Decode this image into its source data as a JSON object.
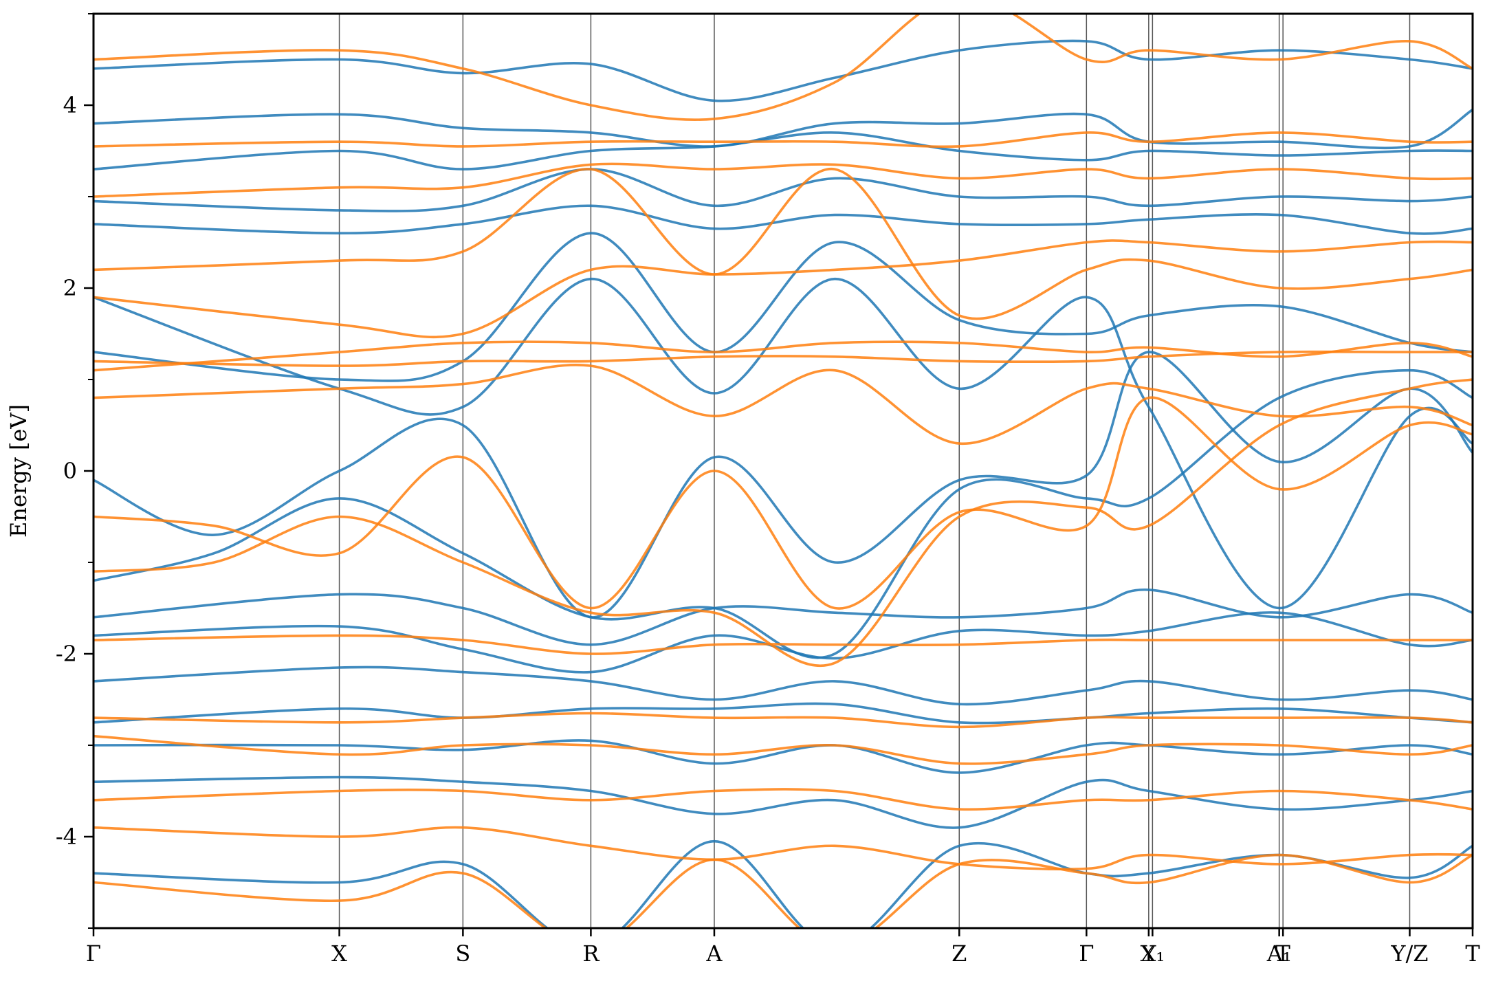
{
  "chart_data": {
    "type": "line",
    "title": "",
    "xlabel": "",
    "ylabel": "Energy [eV]",
    "ylim": [
      -5,
      5
    ],
    "yticks": [
      {
        "value": 4,
        "label": "4"
      },
      {
        "value": 2,
        "label": "2"
      },
      {
        "value": 0,
        "label": "0"
      },
      {
        "value": -2,
        "label": "-2"
      },
      {
        "value": -4,
        "label": "-4"
      }
    ],
    "xlim": [
      0,
      8.0
    ],
    "high_symmetry_points": [
      {
        "x": 0.0,
        "label": "Γ"
      },
      {
        "x": 1.426,
        "label": "X"
      },
      {
        "x": 2.143,
        "label": "S"
      },
      {
        "x": 2.885,
        "label": "R"
      },
      {
        "x": 3.601,
        "label": "A"
      },
      {
        "x": 5.022,
        "label": "Z"
      },
      {
        "x": 5.76,
        "label": "Γ"
      },
      {
        "x": 6.121,
        "label": "Y"
      },
      {
        "x": 6.143,
        "label": "X₁"
      },
      {
        "x": 6.878,
        "label": "A₁"
      },
      {
        "x": 6.9,
        "label": "T"
      },
      {
        "x": 7.635,
        "label": "Y/Z"
      },
      {
        "x": 8.0,
        "label": "T"
      }
    ],
    "grid": false,
    "legend": "none",
    "series": [
      {
        "color": "#1f77b4",
        "bands": [
          {
            "x": [
              0,
              0.7,
              1.426,
              2.143,
              2.885,
              3.601,
              4.3,
              5.022,
              5.76,
              6.121,
              6.878,
              7.635,
              8.0
            ],
            "y": [
              -0.1,
              -0.7,
              0.0,
              0.5,
              -1.6,
              0.15,
              -1.0,
              -0.1,
              -0.05,
              1.3,
              0.1,
              0.9,
              0.2
            ]
          },
          {
            "x": [
              0,
              0.7,
              1.426,
              2.143,
              2.885,
              3.601,
              4.3,
              5.022,
              5.76,
              6.121,
              6.878,
              7.635,
              8.0
            ],
            "y": [
              -1.2,
              -0.9,
              -0.3,
              -0.9,
              -1.6,
              -1.5,
              -2.0,
              -0.2,
              -0.3,
              -0.3,
              0.8,
              1.1,
              0.8
            ]
          },
          {
            "x": [
              0,
              1.426,
              2.143,
              2.885,
              3.601,
              4.3,
              5.022,
              5.76,
              6.121,
              6.878,
              7.635,
              8.0
            ],
            "y": [
              1.9,
              0.9,
              0.7,
              2.1,
              0.85,
              2.1,
              0.9,
              1.9,
              0.7,
              -1.5,
              0.6,
              0.3
            ]
          },
          {
            "x": [
              0,
              1.426,
              2.143,
              2.885,
              3.601,
              4.3,
              5.022,
              5.76,
              6.121,
              6.878,
              7.635,
              8.0
            ],
            "y": [
              -1.6,
              -1.35,
              -1.5,
              -1.9,
              -1.5,
              -1.55,
              -1.6,
              -1.5,
              -1.3,
              -1.6,
              -1.35,
              -1.55
            ]
          },
          {
            "x": [
              0,
              1.426,
              2.143,
              2.885,
              3.601,
              4.3,
              5.022,
              5.76,
              6.121,
              6.878,
              7.635,
              8.0
            ],
            "y": [
              -1.8,
              -1.7,
              -1.95,
              -2.2,
              -1.8,
              -2.05,
              -1.75,
              -1.8,
              -1.75,
              -1.55,
              -1.9,
              -1.85
            ]
          },
          {
            "x": [
              0,
              1.426,
              2.143,
              2.885,
              3.601,
              4.3,
              5.022,
              5.76,
              6.121,
              6.878,
              7.635,
              8.0
            ],
            "y": [
              -2.3,
              -2.15,
              -2.2,
              -2.3,
              -2.5,
              -2.3,
              -2.55,
              -2.4,
              -2.3,
              -2.5,
              -2.4,
              -2.5
            ]
          },
          {
            "x": [
              0,
              1.426,
              2.143,
              2.885,
              3.601,
              4.3,
              5.022,
              5.76,
              6.121,
              6.878,
              7.635,
              8.0
            ],
            "y": [
              -2.75,
              -2.6,
              -2.7,
              -2.6,
              -2.6,
              -2.55,
              -2.75,
              -2.7,
              -2.65,
              -2.6,
              -2.7,
              -2.75
            ]
          },
          {
            "x": [
              0,
              1.426,
              2.143,
              2.885,
              3.601,
              4.3,
              5.022,
              5.76,
              6.121,
              6.878,
              7.635,
              8.0
            ],
            "y": [
              -3.0,
              -3.0,
              -3.05,
              -2.95,
              -3.2,
              -3.0,
              -3.3,
              -3.0,
              -3.0,
              -3.1,
              -3.0,
              -3.1
            ]
          },
          {
            "x": [
              0,
              1.426,
              2.143,
              2.885,
              3.601,
              4.3,
              5.022,
              5.76,
              6.121,
              6.878,
              7.635,
              8.0
            ],
            "y": [
              -3.4,
              -3.35,
              -3.4,
              -3.5,
              -3.75,
              -3.6,
              -3.9,
              -3.4,
              -3.5,
              -3.7,
              -3.6,
              -3.5
            ]
          },
          {
            "x": [
              0,
              1.426,
              2.143,
              2.885,
              3.601,
              4.3,
              5.022,
              5.76,
              6.121,
              6.878,
              7.635,
              8.0
            ],
            "y": [
              -4.4,
              -4.5,
              -4.3,
              -5.2,
              -4.05,
              -5.2,
              -4.1,
              -4.4,
              -4.4,
              -4.2,
              -4.45,
              -4.1
            ]
          },
          {
            "x": [
              0,
              1.426,
              2.143,
              2.885,
              3.601,
              4.3,
              5.022,
              5.76,
              6.121,
              6.878,
              7.635,
              8.0
            ],
            "y": [
              2.7,
              2.6,
              2.7,
              2.9,
              2.65,
              2.8,
              2.7,
              2.7,
              2.75,
              2.8,
              2.6,
              2.65
            ]
          },
          {
            "x": [
              0,
              1.426,
              2.143,
              2.885,
              3.601,
              4.3,
              5.022,
              5.76,
              6.121,
              6.878,
              7.635,
              8.0
            ],
            "y": [
              2.95,
              2.85,
              2.9,
              3.3,
              2.9,
              3.2,
              3.0,
              3.0,
              2.9,
              3.0,
              2.95,
              3.0
            ]
          },
          {
            "x": [
              0,
              1.426,
              2.143,
              2.885,
              3.601,
              4.3,
              5.022,
              5.76,
              6.121,
              6.878,
              7.635,
              8.0
            ],
            "y": [
              3.3,
              3.5,
              3.3,
              3.5,
              3.55,
              3.7,
              3.5,
              3.4,
              3.5,
              3.45,
              3.5,
              3.5
            ]
          },
          {
            "x": [
              0,
              1.426,
              2.143,
              2.885,
              3.601,
              4.3,
              5.022,
              5.76,
              6.121,
              6.878,
              7.635,
              8.0
            ],
            "y": [
              3.8,
              3.9,
              3.75,
              3.7,
              3.55,
              3.8,
              3.8,
              3.9,
              3.6,
              3.6,
              3.55,
              3.95
            ]
          },
          {
            "x": [
              0,
              1.426,
              2.143,
              2.885,
              3.601,
              4.3,
              5.022,
              5.76,
              6.121,
              6.878,
              7.635,
              8.0
            ],
            "y": [
              4.4,
              4.5,
              4.35,
              4.45,
              4.05,
              4.3,
              4.6,
              4.7,
              4.5,
              4.6,
              4.5,
              4.4
            ]
          },
          {
            "x": [
              0,
              1.426,
              2.143,
              2.885,
              3.601,
              4.3,
              5.022,
              5.76,
              6.121,
              6.878,
              7.635,
              8.0
            ],
            "y": [
              1.3,
              1.0,
              1.2,
              2.6,
              1.3,
              2.5,
              1.65,
              1.5,
              1.7,
              1.8,
              1.4,
              1.3
            ]
          }
        ]
      },
      {
        "color": "#ff7f0e",
        "bands": [
          {
            "x": [
              0,
              0.7,
              1.426,
              2.143,
              2.885,
              3.601,
              4.3,
              5.022,
              5.76,
              6.121,
              6.878,
              7.635,
              8.0
            ],
            "y": [
              -0.5,
              -0.6,
              -0.9,
              0.15,
              -1.5,
              0.0,
              -1.5,
              -0.45,
              -0.6,
              0.8,
              -0.2,
              0.5,
              0.4
            ]
          },
          {
            "x": [
              0,
              0.7,
              1.426,
              2.143,
              2.885,
              3.601,
              4.3,
              5.022,
              5.76,
              6.121,
              6.878,
              7.635,
              8.0
            ],
            "y": [
              -1.1,
              -1.0,
              -0.5,
              -1.0,
              -1.55,
              -1.55,
              -2.1,
              -0.5,
              -0.4,
              -0.6,
              0.5,
              0.9,
              1.0
            ]
          },
          {
            "x": [
              0,
              1.426,
              2.143,
              2.885,
              3.601,
              4.3,
              5.022,
              5.76,
              6.121,
              6.878,
              7.635,
              8.0
            ],
            "y": [
              1.2,
              1.15,
              1.2,
              1.2,
              1.25,
              1.25,
              1.2,
              1.2,
              1.25,
              1.3,
              1.3,
              1.3
            ]
          },
          {
            "x": [
              0,
              1.426,
              2.143,
              2.885,
              3.601,
              4.3,
              5.022,
              5.76,
              6.121,
              6.878,
              7.635,
              8.0
            ],
            "y": [
              1.1,
              1.3,
              1.4,
              1.4,
              1.3,
              1.4,
              1.4,
              1.3,
              1.35,
              1.25,
              1.4,
              1.25
            ]
          },
          {
            "x": [
              0,
              1.426,
              2.143,
              2.885,
              3.601,
              4.3,
              5.022,
              5.76,
              6.121,
              6.878,
              7.635,
              8.0
            ],
            "y": [
              0.8,
              0.9,
              0.95,
              1.15,
              0.6,
              1.1,
              0.3,
              0.9,
              0.9,
              0.6,
              0.7,
              0.5
            ]
          },
          {
            "x": [
              0,
              1.426,
              2.143,
              2.885,
              3.601,
              4.3,
              5.022,
              5.76,
              6.121,
              6.878,
              7.635,
              8.0
            ],
            "y": [
              -1.85,
              -1.8,
              -1.85,
              -2.0,
              -1.9,
              -1.9,
              -1.9,
              -1.85,
              -1.85,
              -1.85,
              -1.85,
              -1.85
            ]
          },
          {
            "x": [
              0,
              1.426,
              2.143,
              2.885,
              3.601,
              4.3,
              5.022,
              5.76,
              6.121,
              6.878,
              7.635,
              8.0
            ],
            "y": [
              -2.7,
              -2.75,
              -2.7,
              -2.65,
              -2.7,
              -2.7,
              -2.8,
              -2.7,
              -2.7,
              -2.7,
              -2.7,
              -2.75
            ]
          },
          {
            "x": [
              0,
              1.426,
              2.143,
              2.885,
              3.601,
              4.3,
              5.022,
              5.76,
              6.121,
              6.878,
              7.635,
              8.0
            ],
            "y": [
              -2.9,
              -3.1,
              -3.0,
              -3.0,
              -3.1,
              -3.0,
              -3.2,
              -3.1,
              -3.0,
              -3.0,
              -3.1,
              -3.0
            ]
          },
          {
            "x": [
              0,
              1.426,
              2.143,
              2.885,
              3.601,
              4.3,
              5.022,
              5.76,
              6.121,
              6.878,
              7.635,
              8.0
            ],
            "y": [
              -3.6,
              -3.5,
              -3.5,
              -3.6,
              -3.5,
              -3.5,
              -3.7,
              -3.6,
              -3.6,
              -3.5,
              -3.6,
              -3.7
            ]
          },
          {
            "x": [
              0,
              1.426,
              2.143,
              2.885,
              3.601,
              4.3,
              5.022,
              5.76,
              6.121,
              6.878,
              7.635,
              8.0
            ],
            "y": [
              -4.5,
              -4.7,
              -4.4,
              -5.2,
              -4.25,
              -5.2,
              -4.3,
              -4.4,
              -4.5,
              -4.2,
              -4.5,
              -4.2
            ]
          },
          {
            "x": [
              0,
              1.426,
              2.143,
              2.885,
              3.601,
              4.3,
              5.022,
              5.76,
              6.121,
              6.878,
              7.635,
              8.0
            ],
            "y": [
              2.2,
              2.3,
              2.4,
              3.3,
              2.15,
              3.3,
              1.7,
              2.2,
              2.3,
              2.0,
              2.1,
              2.2
            ]
          },
          {
            "x": [
              0,
              1.426,
              2.143,
              2.885,
              3.601,
              4.3,
              5.022,
              5.76,
              6.121,
              6.878,
              7.635,
              8.0
            ],
            "y": [
              3.0,
              3.1,
              3.1,
              3.35,
              3.3,
              3.35,
              3.2,
              3.3,
              3.2,
              3.3,
              3.2,
              3.2
            ]
          },
          {
            "x": [
              0,
              1.426,
              2.143,
              2.885,
              3.601,
              4.3,
              5.022,
              5.76,
              6.121,
              6.878,
              7.635,
              8.0
            ],
            "y": [
              3.55,
              3.6,
              3.55,
              3.6,
              3.6,
              3.6,
              3.55,
              3.7,
              3.6,
              3.7,
              3.6,
              3.6
            ]
          },
          {
            "x": [
              0,
              1.426,
              2.143,
              2.885,
              3.601,
              4.3,
              5.022,
              5.76,
              6.121,
              6.878,
              7.635,
              8.0
            ],
            "y": [
              4.5,
              4.6,
              4.4,
              4.0,
              3.85,
              4.25,
              5.2,
              4.5,
              4.6,
              4.5,
              4.7,
              4.4
            ]
          },
          {
            "x": [
              0,
              1.426,
              2.143,
              2.885,
              3.601,
              4.3,
              5.022,
              5.76,
              6.121,
              6.878,
              7.635,
              8.0
            ],
            "y": [
              1.9,
              1.6,
              1.5,
              2.2,
              2.15,
              2.2,
              2.3,
              2.5,
              2.5,
              2.4,
              2.5,
              2.5
            ]
          },
          {
            "x": [
              0,
              1.426,
              2.143,
              2.885,
              3.601,
              4.3,
              5.022,
              5.76,
              6.121,
              6.878,
              7.635,
              8.0
            ],
            "y": [
              -3.9,
              -4.0,
              -3.9,
              -4.1,
              -4.25,
              -4.1,
              -4.3,
              -4.35,
              -4.2,
              -4.3,
              -4.2,
              -4.2
            ]
          }
        ]
      }
    ]
  }
}
